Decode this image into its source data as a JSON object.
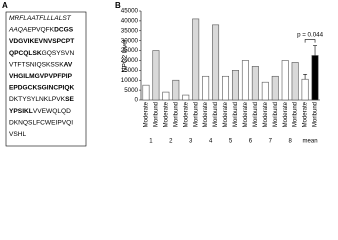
{
  "panel_a": {
    "label": "A",
    "sequence": [
      [
        {
          "text": "MRFLAATFLLLALST",
          "style": "italic"
        }
      ],
      [
        {
          "text": "AAQAE",
          "style": "italic"
        },
        {
          "text": "PVQFK",
          "style": "normal"
        },
        {
          "text": "DCGS",
          "style": "bold"
        }
      ],
      [
        {
          "text": "VDGVIKEVNVSPCPT",
          "style": "bold"
        }
      ],
      [
        {
          "text": "QPCQLSK",
          "style": "bold"
        },
        {
          "text": "GQSYSVN",
          "style": "normal"
        }
      ],
      [
        {
          "text": "VTFTSNIQSKSSK",
          "style": "normal"
        },
        {
          "text": "AV",
          "style": "bold"
        }
      ],
      [
        {
          "text": "VHGILMGVPVPFPIP",
          "style": "bold"
        }
      ],
      [
        {
          "text": "EPDGCKSGINCPIQK",
          "style": "bold"
        }
      ],
      [
        {
          "text": "DKTYSYLNKLPVK",
          "style": "normal"
        },
        {
          "text": "SE",
          "style": "bold"
        }
      ],
      [
        {
          "text": "YPSIKL",
          "style": "bold"
        },
        {
          "text": "VVEWQLQD",
          "style": "normal"
        }
      ],
      [
        {
          "text": "DKNQSLFCWEIPVQI",
          "style": "normal"
        }
      ],
      [
        {
          "text": "VSHL",
          "style": "normal"
        }
      ]
    ]
  },
  "chart_data": {
    "type": "bar",
    "panel_label": "B",
    "y_label": "NPC2 level",
    "categories": [
      "Moderate",
      "Moribund",
      "Moderate",
      "Moribund",
      "Moderate",
      "Moribund",
      "Moderate",
      "Moribund",
      "Moderate",
      "Moribund",
      "Moderate",
      "Moribund",
      "Moderate",
      "Moribund",
      "Moderate",
      "Moribund",
      "Moderate",
      "Moribund"
    ],
    "groups": [
      "1",
      "2",
      "3",
      "4",
      "5",
      "6",
      "7",
      "8",
      "mean"
    ],
    "values": [
      7500,
      25000,
      4000,
      10000,
      2500,
      41000,
      12000,
      38000,
      12000,
      15000,
      20000,
      17000,
      9000,
      12000,
      20000,
      19000,
      10500,
      22500
    ],
    "errors": [
      null,
      null,
      null,
      null,
      null,
      null,
      null,
      null,
      null,
      null,
      null,
      null,
      null,
      null,
      null,
      null,
      2500,
      5000
    ],
    "colors": [
      "#ffffff",
      "#d9d9d9",
      "#ffffff",
      "#d9d9d9",
      "#ffffff",
      "#d9d9d9",
      "#ffffff",
      "#d9d9d9",
      "#ffffff",
      "#d9d9d9",
      "#ffffff",
      "#d9d9d9",
      "#ffffff",
      "#d9d9d9",
      "#ffffff",
      "#d9d9d9",
      "#ffffff",
      "#000000"
    ],
    "annotation": "p = 0.044",
    "ylim": [
      0,
      45000
    ],
    "yticks": [
      0,
      5000,
      10000,
      15000,
      20000,
      25000,
      30000,
      35000,
      40000,
      45000
    ]
  }
}
